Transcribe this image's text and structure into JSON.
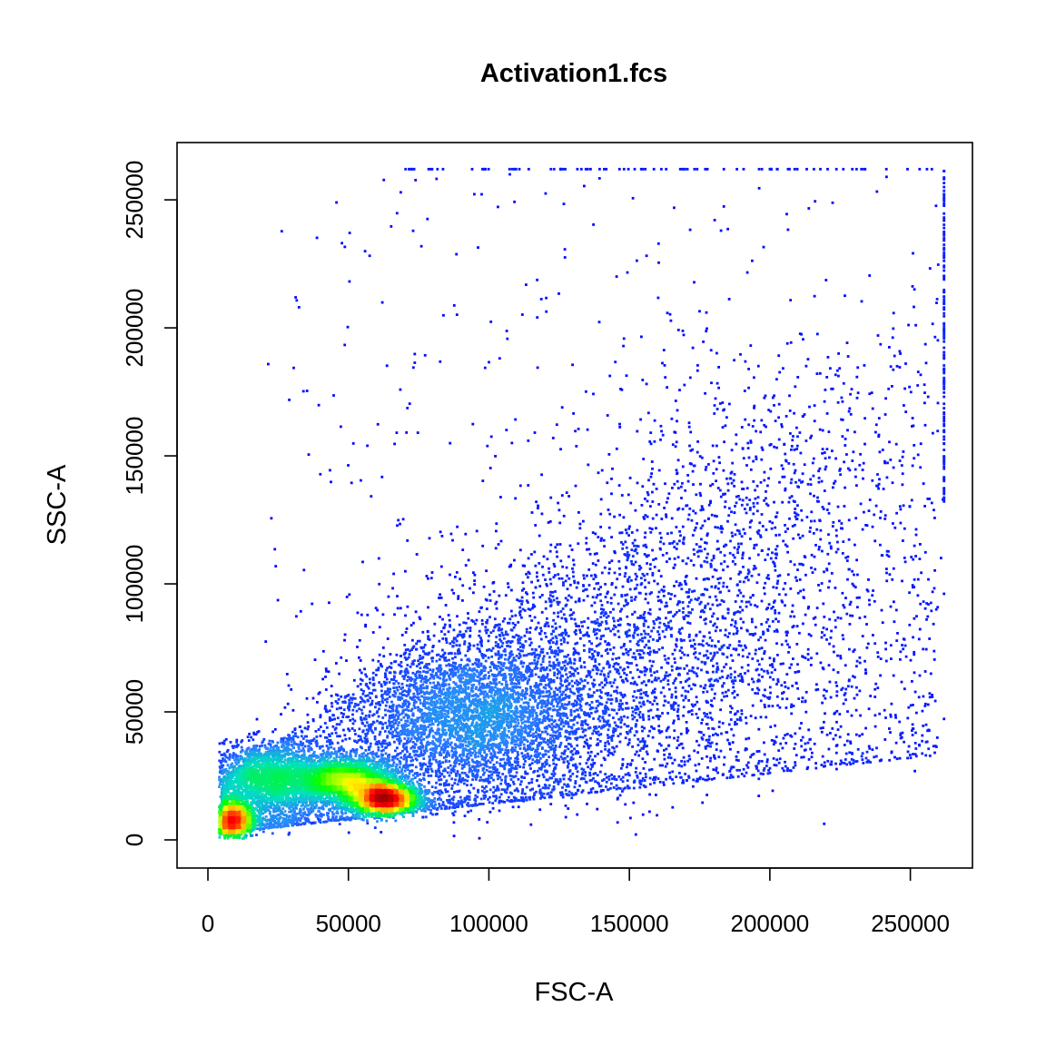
{
  "chart_data": {
    "type": "scatter",
    "title": "Activation1.fcs",
    "xlabel": "FSC-A",
    "ylabel": "SSC-A",
    "xlim": [
      -10000,
      272000
    ],
    "ylim": [
      -10000,
      275000
    ],
    "x_ticks": [
      0,
      50000,
      100000,
      150000,
      200000,
      250000
    ],
    "y_ticks": [
      0,
      50000,
      100000,
      150000,
      200000,
      250000
    ],
    "grid": false,
    "legend": "none",
    "color_scale": [
      "#0000ff",
      "#2a7fff",
      "#00e0c0",
      "#00ff00",
      "#ffff00",
      "#ff8000",
      "#ff0000",
      "#a00000"
    ],
    "density_peaks": [
      {
        "x": 63000,
        "y": 16000,
        "level": "high"
      },
      {
        "x": 50000,
        "y": 23000,
        "level": "medium"
      },
      {
        "x": 9000,
        "y": 8000,
        "level": "medium"
      },
      {
        "x": 22000,
        "y": 28000,
        "level": "medium-low"
      },
      {
        "x": 95000,
        "y": 50000,
        "level": "low"
      }
    ],
    "saturation": {
      "x_max": 262000,
      "y_max": 262000
    }
  }
}
